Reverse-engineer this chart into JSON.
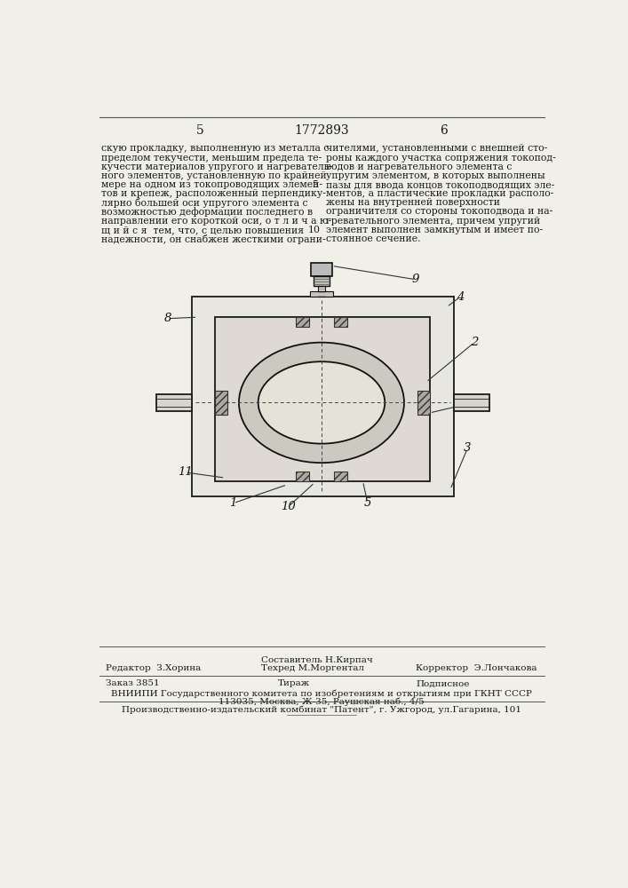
{
  "page_number_left": "5",
  "patent_number": "1772893",
  "page_number_right": "6",
  "text_left": "скую прокладку, выполненную из металла с\nпределом текучести, меньшим предела те-\nкучести материалов упругого и нагреватель-\nного элементов, установленную по крайней\nмере на одном из токопроводящих элемен-\nтов и крепеж, расположенный перпендику-\nлярно большей оси упругого элемента с\nвозможностью деформации последнего в\nнаправлении его короткой оси, о т л и ч а ю-\nщ и й с я  тем, что, с целью повышения\nнадежности, он снабжен жесткими ограни-",
  "text_right": "чителями, установленными с внешней сто-\nроны каждого участка сопряжения токопод-\nводов и нагревательного элемента с\nупругим элементом, в которых выполнены\nпазы для ввода концов токоподводящих эле-\nментов, а пластические прокладки располо-\nжены на внутренней поверхности\nограничителя со стороны токоподвода и на-\nгревательного элемента, причем упругий\nэлемент выполнен замкнутым и имеет по-\nстоянное сечение.",
  "bg_color": "#f0efe8",
  "text_color": "#1a1a1a",
  "font_size_body": 7.8,
  "font_size_header": 10,
  "font_size_footer": 7.5,
  "editor_label": "Редактор",
  "editor_name": "З.Хорина",
  "composer_label": "Составитель",
  "composer_name": "Н.Кирпач",
  "techred_label": "Техред",
  "techred_name": "М.Моргентал",
  "corrector_label": "Корректор",
  "corrector_name": "Э.Лончакова",
  "order_label": "Заказ",
  "order_number": "3851",
  "circulation_label": "Тираж",
  "subscription_label": "Подписное",
  "vniiipi_line1": "ВНИИПИ Государственного комитета по изобретениям и открытиям при ГКНТ СССР",
  "vniiipi_line2": "113035, Москва, Ж-35, Раушская наб., 4/5",
  "plant_line": "Производственно-издательский комбинат \"Патент\", г. Ужгород, ул.Гагарина, 101"
}
